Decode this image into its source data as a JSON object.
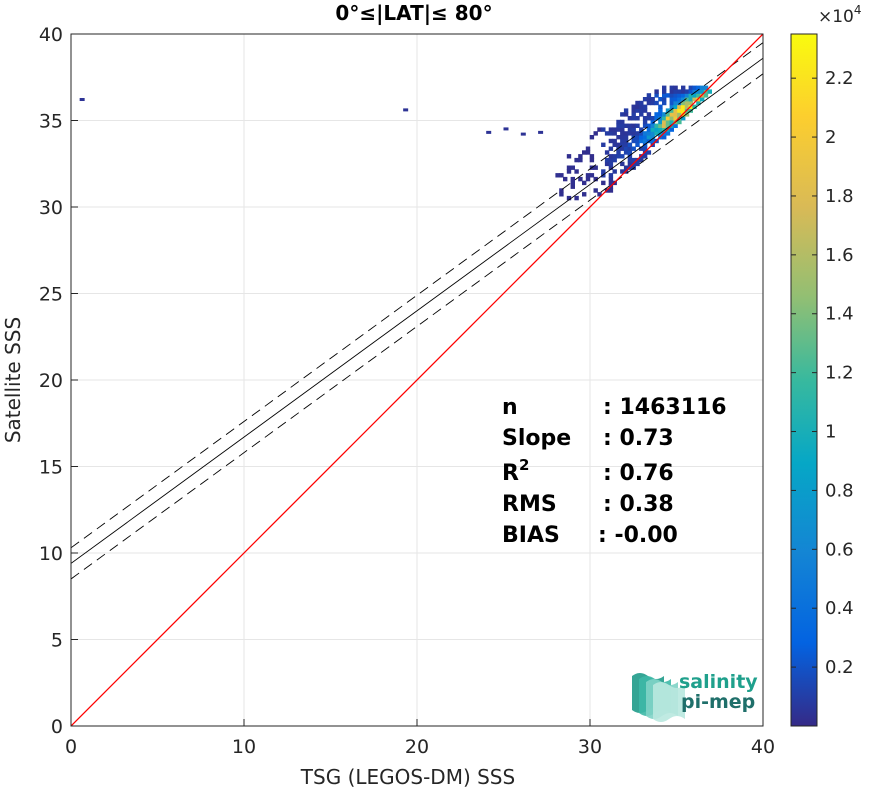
{
  "chart_data": {
    "type": "heatmap",
    "title": "0°≤|LAT|≤ 80°",
    "xlabel": "TSG (LEGOS-DM) SSS",
    "ylabel": "Satellite SSS",
    "xlim": [
      0,
      40
    ],
    "ylim": [
      0,
      40
    ],
    "xticks": [
      "0",
      "10",
      "20",
      "30",
      "40"
    ],
    "yticks": [
      "0",
      "5",
      "10",
      "15",
      "20",
      "25",
      "30",
      "35",
      "40"
    ],
    "grid": true,
    "identity_line_color": "#ff0000",
    "fit": {
      "slope": 0.73,
      "intercept": 9.4,
      "band": 0.9
    },
    "density_regions": [
      {
        "x": [
          28.0,
          36.8
        ],
        "y": [
          30.3,
          37.0
        ],
        "level": 0.05
      },
      {
        "x": [
          30.5,
          36.8
        ],
        "y": [
          31.5,
          37.0
        ],
        "level": 0.15
      },
      {
        "x": [
          33.5,
          36.5
        ],
        "y": [
          33.8,
          36.5
        ],
        "level": 0.4
      },
      {
        "x": [
          34.8,
          35.8
        ],
        "y": [
          34.8,
          35.8
        ],
        "level": 0.9
      }
    ],
    "outliers": [
      {
        "x": 0.5,
        "y": 36.3
      },
      {
        "x": 19.2,
        "y": 35.7
      },
      {
        "x": 24.0,
        "y": 34.4
      },
      {
        "x": 25.0,
        "y": 34.6
      },
      {
        "x": 26.0,
        "y": 34.3
      },
      {
        "x": 27.0,
        "y": 34.4
      }
    ],
    "stats": [
      {
        "label": "n",
        "value": ": 1463116"
      },
      {
        "label": "Slope",
        "value": ": 0.73"
      },
      {
        "label": "R",
        "sup": "2",
        "value": ": 0.76"
      },
      {
        "label": "RMS",
        "value": ": 0.38"
      },
      {
        "label": "BIAS",
        "value": ": -0.00"
      }
    ],
    "colorbar": {
      "colormap": "parula",
      "range": [
        0,
        2.35
      ],
      "ticks": [
        "0.2",
        "0.4",
        "0.6",
        "0.8",
        "1",
        "1.2",
        "1.4",
        "1.6",
        "1.8",
        "2",
        "2.2"
      ],
      "tick_values": [
        0.2,
        0.4,
        0.6,
        0.8,
        1.0,
        1.2,
        1.4,
        1.6,
        1.8,
        2.0,
        2.2
      ],
      "multiplier": "×10",
      "exponent": "4"
    },
    "logo": {
      "line1": "salinity",
      "line2": "pi-mep"
    }
  }
}
